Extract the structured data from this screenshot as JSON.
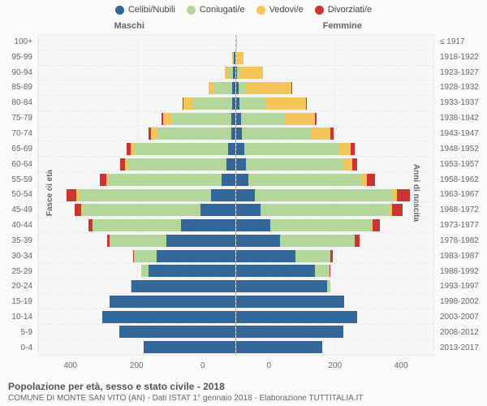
{
  "chart": {
    "type": "population-pyramid",
    "legend": [
      {
        "label": "Celibi/Nubili",
        "color": "#336699"
      },
      {
        "label": "Coniugati/e",
        "color": "#b3d69b"
      },
      {
        "label": "Vedovi/e",
        "color": "#f5c55a"
      },
      {
        "label": "Divorziati/e",
        "color": "#cc3333"
      }
    ],
    "headers": {
      "left": "Maschi",
      "right": "Femmine"
    },
    "y_left_label": "Fasce di età",
    "y_right_label": "Anni di nascita",
    "x_max": 400,
    "x_ticks": [
      0,
      200,
      400
    ],
    "background_color": "#f6f6f6",
    "grid_color": "#e8e8e8",
    "axis_font_size": 10,
    "rows": [
      {
        "age": "100+",
        "birth": "≤ 1917",
        "m": [
          0,
          0,
          0,
          0
        ],
        "f": [
          0,
          0,
          2,
          0
        ]
      },
      {
        "age": "95-99",
        "birth": "1918-1922",
        "m": [
          2,
          0,
          4,
          0
        ],
        "f": [
          1,
          0,
          14,
          0
        ]
      },
      {
        "age": "90-94",
        "birth": "1923-1927",
        "m": [
          4,
          10,
          6,
          0
        ],
        "f": [
          3,
          4,
          48,
          0
        ]
      },
      {
        "age": "85-89",
        "birth": "1928-1932",
        "m": [
          6,
          36,
          12,
          0
        ],
        "f": [
          5,
          18,
          90,
          2
        ]
      },
      {
        "age": "80-84",
        "birth": "1933-1937",
        "m": [
          6,
          80,
          18,
          2
        ],
        "f": [
          8,
          54,
          80,
          2
        ]
      },
      {
        "age": "75-79",
        "birth": "1938-1942",
        "m": [
          8,
          120,
          18,
          4
        ],
        "f": [
          10,
          90,
          60,
          4
        ]
      },
      {
        "age": "70-74",
        "birth": "1943-1947",
        "m": [
          8,
          150,
          12,
          6
        ],
        "f": [
          12,
          140,
          40,
          6
        ]
      },
      {
        "age": "65-69",
        "birth": "1948-1952",
        "m": [
          14,
          190,
          8,
          8
        ],
        "f": [
          18,
          190,
          24,
          8
        ]
      },
      {
        "age": "60-64",
        "birth": "1953-1957",
        "m": [
          18,
          200,
          6,
          10
        ],
        "f": [
          20,
          200,
          16,
          10
        ]
      },
      {
        "age": "55-59",
        "birth": "1958-1962",
        "m": [
          28,
          230,
          4,
          12
        ],
        "f": [
          26,
          230,
          10,
          16
        ]
      },
      {
        "age": "50-54",
        "birth": "1963-1967",
        "m": [
          48,
          270,
          4,
          20
        ],
        "f": [
          38,
          280,
          8,
          26
        ]
      },
      {
        "age": "45-49",
        "birth": "1968-1972",
        "m": [
          70,
          240,
          2,
          14
        ],
        "f": [
          50,
          260,
          6,
          22
        ]
      },
      {
        "age": "40-44",
        "birth": "1973-1977",
        "m": [
          110,
          180,
          0,
          8
        ],
        "f": [
          70,
          205,
          2,
          14
        ]
      },
      {
        "age": "35-39",
        "birth": "1978-1982",
        "m": [
          140,
          115,
          0,
          4
        ],
        "f": [
          90,
          150,
          0,
          10
        ]
      },
      {
        "age": "30-34",
        "birth": "1983-1987",
        "m": [
          160,
          45,
          0,
          2
        ],
        "f": [
          120,
          72,
          0,
          4
        ]
      },
      {
        "age": "25-29",
        "birth": "1988-1992",
        "m": [
          175,
          16,
          0,
          0
        ],
        "f": [
          160,
          30,
          0,
          2
        ]
      },
      {
        "age": "20-24",
        "birth": "1993-1997",
        "m": [
          210,
          2,
          0,
          0
        ],
        "f": [
          185,
          6,
          0,
          0
        ]
      },
      {
        "age": "15-19",
        "birth": "1998-2002",
        "m": [
          255,
          0,
          0,
          0
        ],
        "f": [
          220,
          0,
          0,
          0
        ]
      },
      {
        "age": "10-14",
        "birth": "2003-2007",
        "m": [
          270,
          0,
          0,
          0
        ],
        "f": [
          245,
          0,
          0,
          0
        ]
      },
      {
        "age": "5-9",
        "birth": "2008-2012",
        "m": [
          235,
          0,
          0,
          0
        ],
        "f": [
          218,
          0,
          0,
          0
        ]
      },
      {
        "age": "0-4",
        "birth": "2013-2017",
        "m": [
          185,
          0,
          0,
          0
        ],
        "f": [
          175,
          0,
          0,
          0
        ]
      }
    ]
  },
  "footer": {
    "title": "Popolazione per età, sesso e stato civile - 2018",
    "subtitle": "COMUNE DI MONTE SAN VITO (AN) - Dati ISTAT 1° gennaio 2018 - Elaborazione TUTTITALIA.IT"
  }
}
